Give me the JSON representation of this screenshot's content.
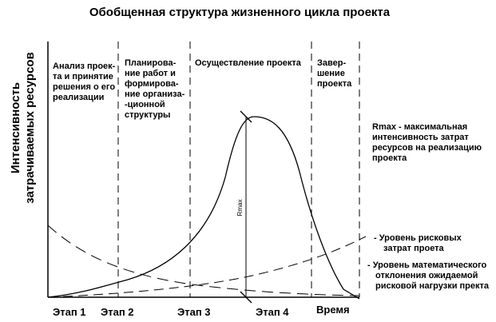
{
  "title": "Обобщенная структура жизненного цикла проекта",
  "y_axis_label": [
    "Интенсивность",
    "затрачиваемых ресурсов"
  ],
  "x_axis_label": "Время",
  "phases": [
    {
      "name": "analysis",
      "lines": [
        "Анализ проек-",
        "та и принятие",
        "решения о его",
        "реализации"
      ]
    },
    {
      "name": "planning",
      "lines": [
        "Планирова-",
        "ние работ и",
        "формирова-",
        "ние организа-",
        "-ционной",
        "структуры"
      ]
    },
    {
      "name": "execution",
      "lines": [
        "Осуществление проекта"
      ]
    },
    {
      "name": "completion",
      "lines": [
        "Завер-",
        "шение",
        "проекта"
      ]
    }
  ],
  "stages": [
    "Этап 1",
    "Этап 2",
    "Этап 3",
    "Этап 4"
  ],
  "rmax_marker": "Rmax",
  "notes": {
    "rmax": [
      "Rmax - максимальная",
      "интенсивность затрат",
      "ресурсов на реализацию",
      "проекта"
    ],
    "risk_cost": [
      "- Уровень рисковых",
      "затрат проета"
    ],
    "expected_risk": [
      "- Уровень математического",
      "отклонения ожидаемой",
      "рисковой нагрузки пректа"
    ]
  }
}
